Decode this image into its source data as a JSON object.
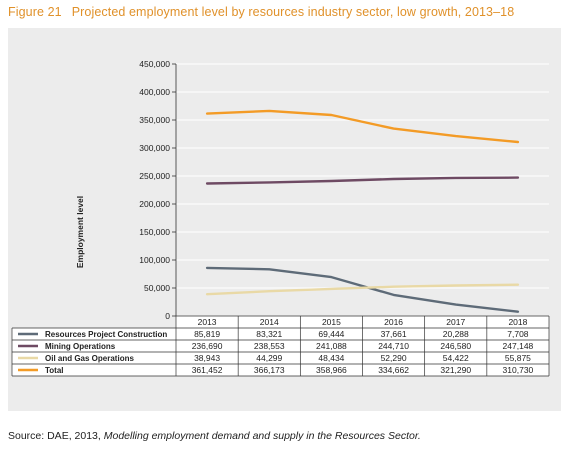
{
  "figure": {
    "number": "Figure 21",
    "title": "Projected employment level by resources industry sector, low growth, 2013–18"
  },
  "source": {
    "prefix": "Source: DAE, 2013, ",
    "publication": "Modelling employment demand and supply in the Resources Sector."
  },
  "chart_data": {
    "type": "line",
    "ylabel": "Employment level",
    "ylim": [
      0,
      450000
    ],
    "yticks": [
      "0",
      "50,000",
      "100,000",
      "150,000",
      "200,000",
      "250,000",
      "300,000",
      "350,000",
      "400,000",
      "450,000"
    ],
    "categories": [
      "2013",
      "2014",
      "2015",
      "2016",
      "2017",
      "2018"
    ],
    "grid": true,
    "legend_position": "data-table-left",
    "series": [
      {
        "name": "Resources Project Construction",
        "color": "#5e6b78",
        "values": [
          85819,
          83321,
          69444,
          37661,
          20288,
          7708
        ],
        "labels": [
          "85,819",
          "83,321",
          "69,444",
          "37,661",
          "20,288",
          "7,708"
        ]
      },
      {
        "name": "Mining Operations",
        "color": "#6e4a63",
        "values": [
          236690,
          238553,
          241088,
          244710,
          246580,
          247148
        ],
        "labels": [
          "236,690",
          "238,553",
          "241,088",
          "244,710",
          "246,580",
          "247,148"
        ]
      },
      {
        "name": "Oil and Gas Operations",
        "color": "#e9d9a6",
        "values": [
          38943,
          44299,
          48434,
          52290,
          54422,
          55875
        ],
        "labels": [
          "38,943",
          "44,299",
          "48,434",
          "52,290",
          "54,422",
          "55,875"
        ]
      },
      {
        "name": "Total",
        "color": "#f39b26",
        "values": [
          361452,
          366173,
          358966,
          334662,
          321290,
          310730
        ],
        "labels": [
          "361,452",
          "366,173",
          "358,966",
          "334,662",
          "321,290",
          "310,730"
        ]
      }
    ]
  }
}
